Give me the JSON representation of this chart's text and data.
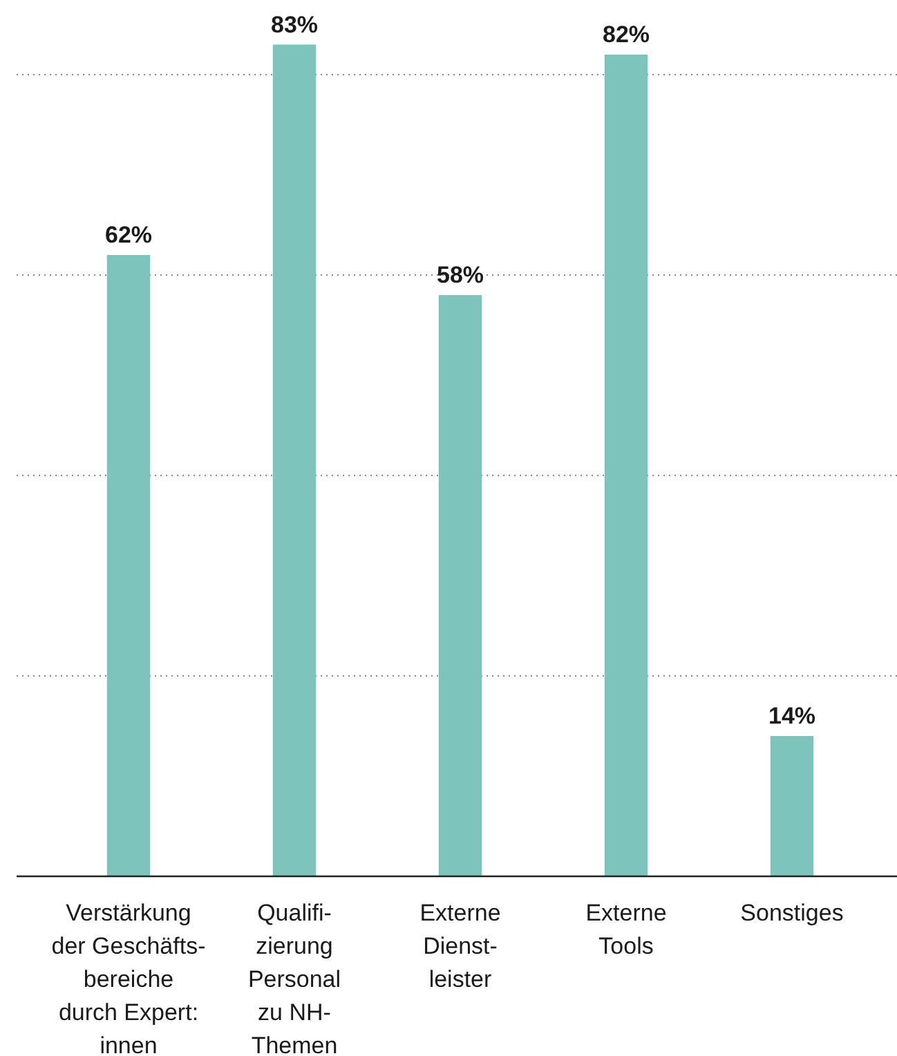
{
  "chart_data": {
    "type": "bar",
    "categories": [
      "Verstärkung\nder Geschäfts-\nbereiche\ndurch Expert:\ninnen",
      "Qualifi-\nzierung\nPersonal\nzu NH-\nThemen",
      "Externe\nDienst-\nleister",
      "Externe\nTools",
      "Sonstiges"
    ],
    "values": [
      62,
      83,
      58,
      82,
      14
    ],
    "value_labels": [
      "62%",
      "83%",
      "58%",
      "82%",
      "14%"
    ],
    "color": "#7dc4bc",
    "yticks": [
      {
        "value": 0,
        "label": null
      },
      {
        "value": 20,
        "label": null
      },
      {
        "value": 40,
        "label": null
      },
      {
        "value": 60,
        "label": null
      },
      {
        "value": 80,
        "label": null
      }
    ],
    "grid": "y",
    "tick_labels": "x"
  }
}
